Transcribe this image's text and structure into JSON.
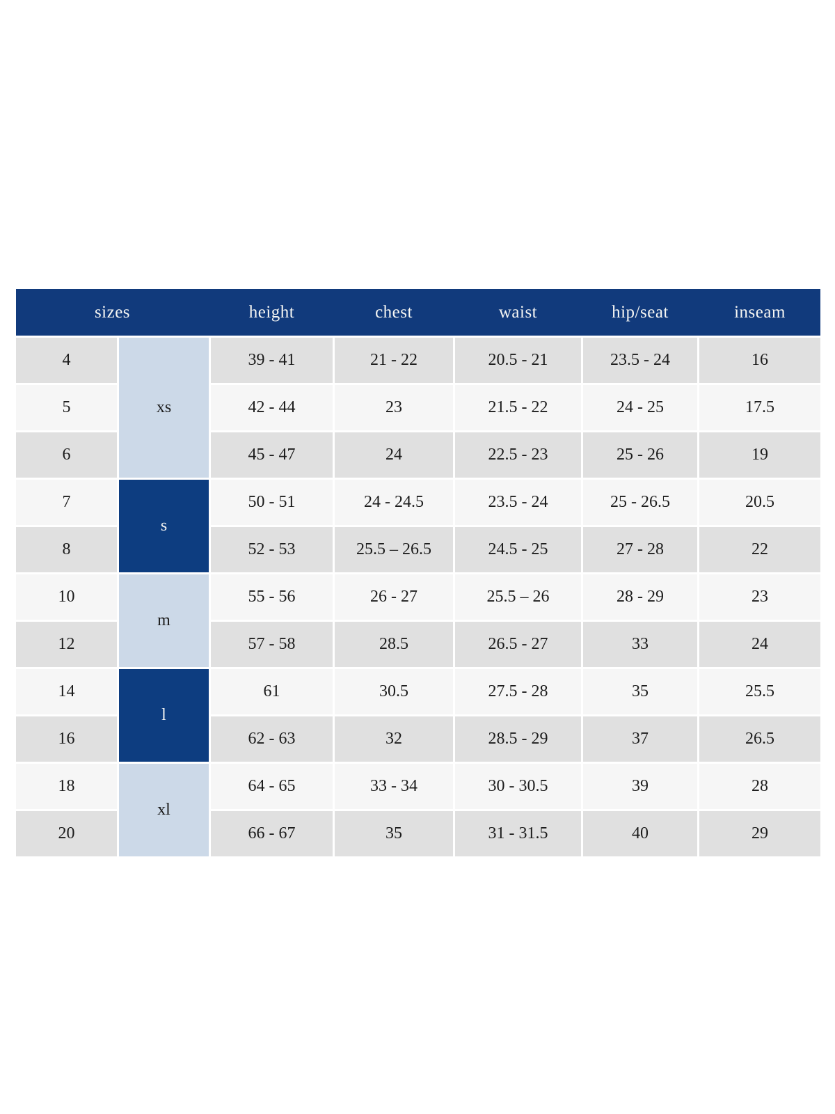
{
  "table": {
    "header": {
      "sizes": "sizes",
      "height": "height",
      "chest": "chest",
      "waist": "waist",
      "hip_seat": "hip/seat",
      "inseam": "inseam"
    },
    "colors": {
      "header_bg": "#113a7c",
      "header_text": "#f7f7f4",
      "group_dark_bg": "#0d3d80",
      "group_light_bg": "#ccd9e8",
      "row_gray_bg": "#e0e0e0",
      "row_light_bg": "#f6f6f6",
      "body_text": "#1c1c1c",
      "page_bg": "#ffffff"
    },
    "groups": [
      {
        "label": "xs",
        "tone": "light",
        "span": 3
      },
      {
        "label": "s",
        "tone": "dark",
        "span": 2
      },
      {
        "label": "m",
        "tone": "light",
        "span": 2
      },
      {
        "label": "l",
        "tone": "dark",
        "span": 2
      },
      {
        "label": "xl",
        "tone": "light",
        "span": 2
      }
    ],
    "rows": [
      {
        "size": "4",
        "height": "39 - 41",
        "chest": "21 - 22",
        "waist": "20.5 - 21",
        "hip_seat": "23.5 - 24",
        "inseam": "16",
        "shade": "gray"
      },
      {
        "size": "5",
        "height": "42 - 44",
        "chest": "23",
        "waist": "21.5 - 22",
        "hip_seat": "24 - 25",
        "inseam": "17.5",
        "shade": "light"
      },
      {
        "size": "6",
        "height": "45 - 47",
        "chest": "24",
        "waist": "22.5 - 23",
        "hip_seat": "25 - 26",
        "inseam": "19",
        "shade": "gray"
      },
      {
        "size": "7",
        "height": "50 - 51",
        "chest": "24 - 24.5",
        "waist": "23.5 - 24",
        "hip_seat": "25 - 26.5",
        "inseam": "20.5",
        "shade": "light"
      },
      {
        "size": "8",
        "height": "52 - 53",
        "chest": "25.5 – 26.5",
        "waist": "24.5 - 25",
        "hip_seat": "27 - 28",
        "inseam": "22",
        "shade": "gray"
      },
      {
        "size": "10",
        "height": "55 - 56",
        "chest": "26 - 27",
        "waist": "25.5 – 26",
        "hip_seat": "28 - 29",
        "inseam": "23",
        "shade": "light"
      },
      {
        "size": "12",
        "height": "57 - 58",
        "chest": "28.5",
        "waist": "26.5 - 27",
        "hip_seat": "33",
        "inseam": "24",
        "shade": "gray"
      },
      {
        "size": "14",
        "height": "61",
        "chest": "30.5",
        "waist": "27.5 - 28",
        "hip_seat": "35",
        "inseam": "25.5",
        "shade": "light"
      },
      {
        "size": "16",
        "height": "62 - 63",
        "chest": "32",
        "waist": "28.5 - 29",
        "hip_seat": "37",
        "inseam": "26.5",
        "shade": "gray"
      },
      {
        "size": "18",
        "height": "64 - 65",
        "chest": "33 - 34",
        "waist": "30 - 30.5",
        "hip_seat": "39",
        "inseam": "28",
        "shade": "light"
      },
      {
        "size": "20",
        "height": "66 - 67",
        "chest": "35",
        "waist": "31 - 31.5",
        "hip_seat": "40",
        "inseam": "29",
        "shade": "gray"
      }
    ]
  }
}
